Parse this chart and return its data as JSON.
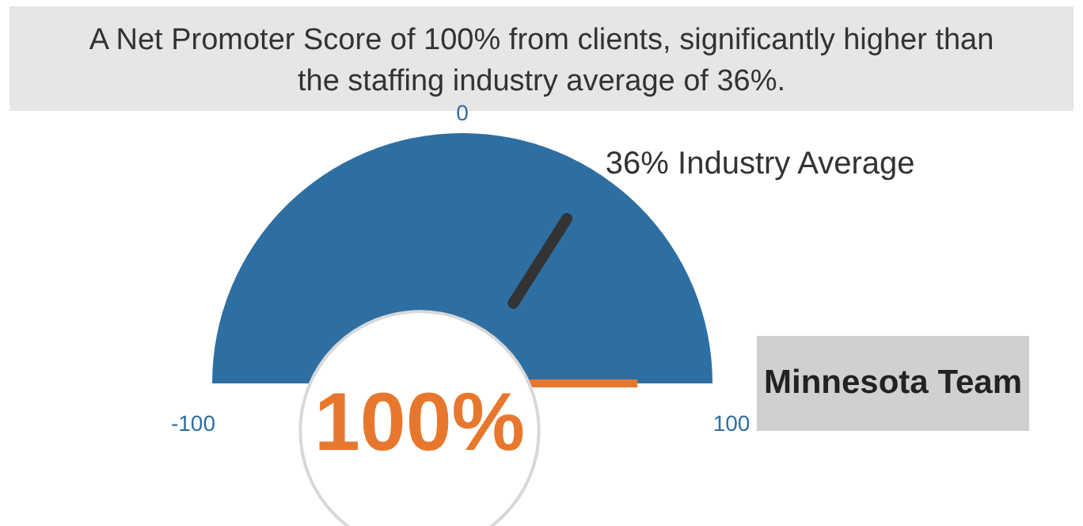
{
  "chart_data": {
    "type": "other",
    "title": "A Net Promoter Score of 100% from clients, significantly higher than the staffing industry average of 36%.",
    "values": [
      100,
      36
    ],
    "value_labels": [
      "100%",
      "36% Industry Average"
    ],
    "annotations": [
      "-100",
      "0",
      "100",
      "Minnesota Team"
    ]
  }
}
